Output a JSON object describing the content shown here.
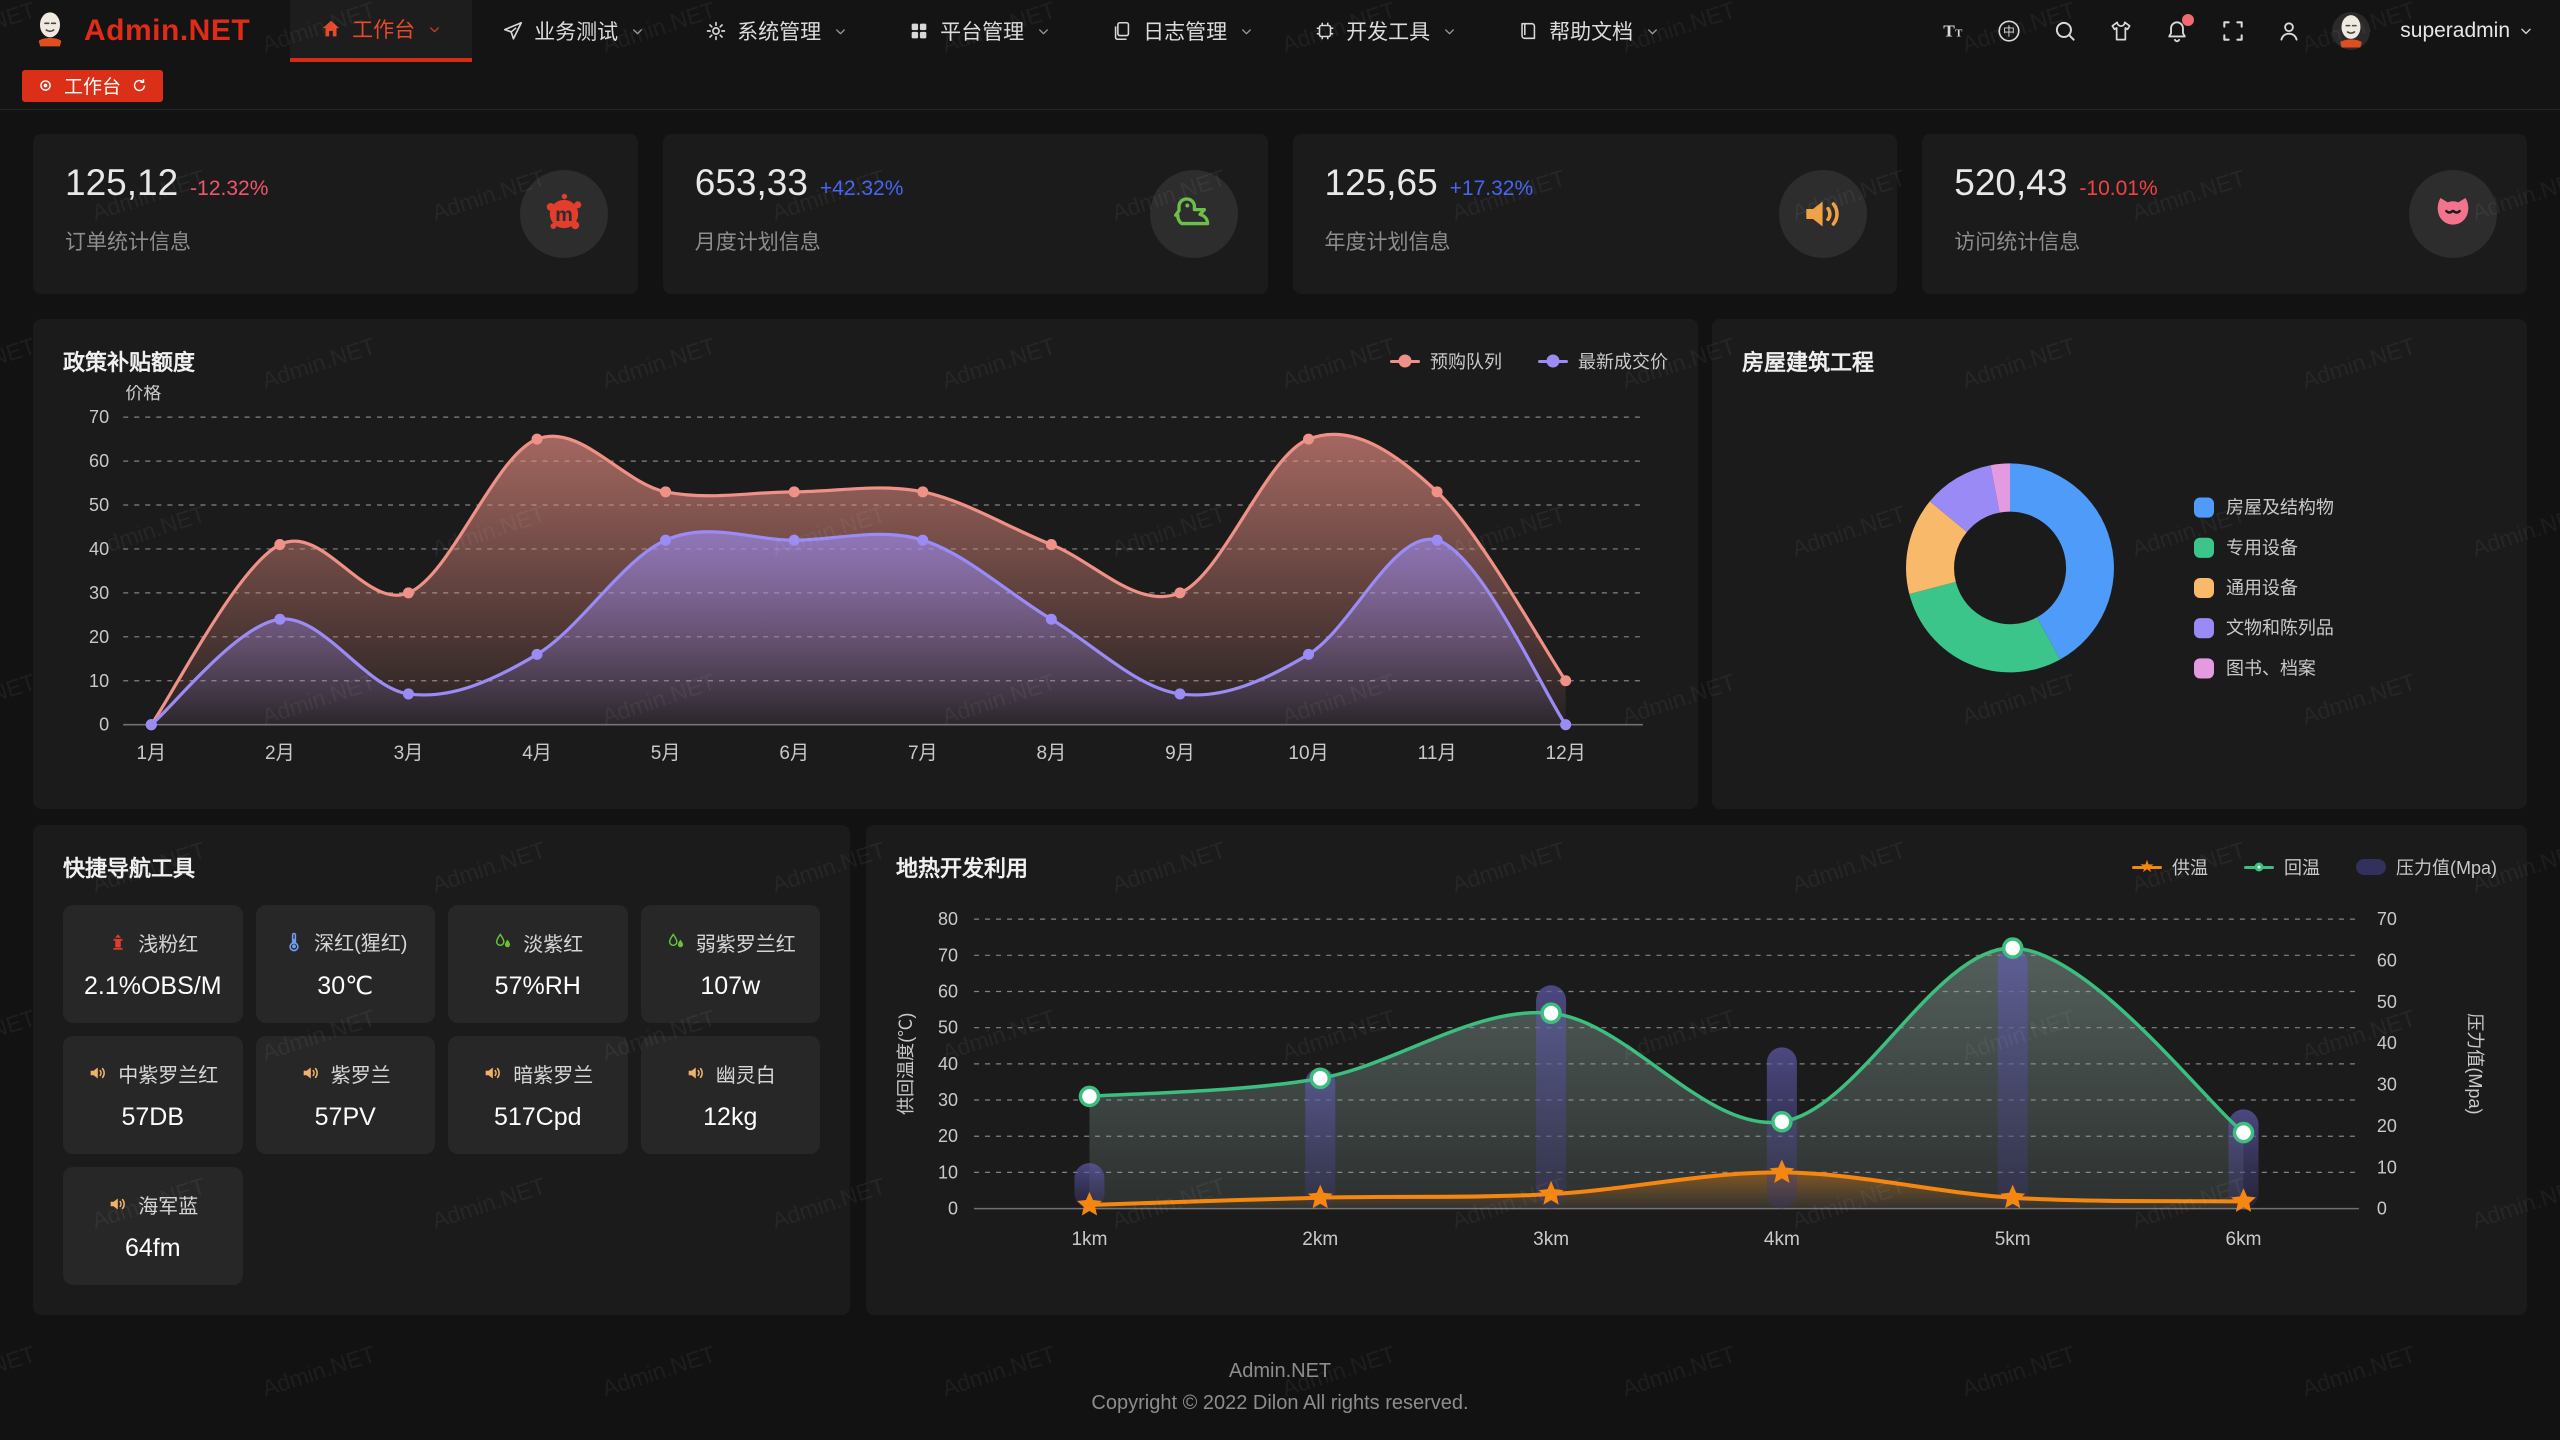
{
  "watermark": "Admin.NET",
  "header": {
    "logo_text": "Admin.NET",
    "menu": [
      {
        "label": "工作台",
        "icon": "home",
        "active": true
      },
      {
        "label": "业务测试",
        "icon": "send",
        "active": false
      },
      {
        "label": "系统管理",
        "icon": "gear",
        "active": false
      },
      {
        "label": "平台管理",
        "icon": "grid",
        "active": false
      },
      {
        "label": "日志管理",
        "icon": "document",
        "active": false
      },
      {
        "label": "开发工具",
        "icon": "cpu",
        "active": false
      },
      {
        "label": "帮助文档",
        "icon": "book",
        "active": false
      }
    ],
    "action_icons": [
      "font-size",
      "language",
      "search",
      "theme",
      "notification",
      "fullscreen",
      "profile"
    ],
    "notification_badge": true,
    "username": "superadmin"
  },
  "tabbar": {
    "tabs": [
      {
        "label": "工作台",
        "active": true
      }
    ]
  },
  "stat_cards": [
    {
      "value": "125,12",
      "delta": "-12.32%",
      "delta_color": "#f1556c",
      "label": "订单统计信息",
      "icon": "meetup-splat",
      "icon_color": "#e23d2d"
    },
    {
      "value": "653,33",
      "delta": "+42.32%",
      "delta_color": "#4466f2",
      "label": "月度计划信息",
      "icon": "duck",
      "icon_color": "#6cbf4a"
    },
    {
      "value": "125,65",
      "delta": "+17.32%",
      "delta_color": "#4466f2",
      "label": "年度计划信息",
      "icon": "speaker",
      "icon_color": "#efa144"
    },
    {
      "value": "520,43",
      "delta": "-10.01%",
      "delta_color": "#ef4444",
      "label": "访问统计信息",
      "icon": "cat",
      "icon_color": "#f2738c"
    }
  ],
  "chart_data": [
    {
      "type": "area",
      "title": "政策补贴额度",
      "ylabel": "价格",
      "ylim": [
        0,
        70
      ],
      "ytick_interval": 10,
      "grid": "dashed",
      "legend_position": "top-right",
      "categories": [
        "1月",
        "2月",
        "3月",
        "4月",
        "5月",
        "6月",
        "7月",
        "8月",
        "9月",
        "10月",
        "11月",
        "12月"
      ],
      "series": [
        {
          "name": "预购队列",
          "color": "#ef9186",
          "values": [
            0,
            41,
            30,
            65,
            53,
            53,
            53,
            41,
            30,
            65,
            53,
            10
          ]
        },
        {
          "name": "最新成交价",
          "color": "#9b8bf4",
          "values": [
            0,
            24,
            7,
            16,
            42,
            42,
            42,
            24,
            7,
            16,
            42,
            0
          ]
        }
      ]
    },
    {
      "type": "pie",
      "title": "房屋建筑工程",
      "donut": true,
      "legend_position": "right",
      "labels": [
        "房屋及结构物",
        "专用设备",
        "通用设备",
        "文物和陈列品",
        "图书、档案"
      ],
      "values": [
        42,
        29,
        15,
        11,
        3
      ],
      "colors": [
        "#4e9bfa",
        "#3bc58a",
        "#f8b96a",
        "#9a8af5",
        "#e49ae0"
      ]
    },
    {
      "type": "line+bar",
      "title": "地热开发利用",
      "legend_position": "top-right",
      "categories": [
        "1km",
        "2km",
        "3km",
        "4km",
        "5km",
        "6km"
      ],
      "left_axis": {
        "label": "供回温度(℃)",
        "range": [
          0,
          80
        ],
        "interval": 10
      },
      "right_axis": {
        "label": "压力值(Mpa)",
        "range": [
          0,
          70
        ],
        "interval": 10
      },
      "series": [
        {
          "name": "供温",
          "chart": "line",
          "marker": "star",
          "axis": "left",
          "color": "#f5860f",
          "values": [
            1,
            3,
            4,
            10,
            3,
            2
          ]
        },
        {
          "name": "回温",
          "chart": "line",
          "marker": "circle",
          "axis": "left",
          "color": "#3cbe7e",
          "values": [
            31,
            36,
            54,
            24,
            72,
            21
          ]
        },
        {
          "name": "压力值(Mpa)",
          "chart": "bar",
          "axis": "right",
          "color": "#4b4784",
          "values": [
            11,
            34,
            54,
            39,
            63,
            24
          ]
        }
      ]
    }
  ],
  "quick_nav": {
    "title": "快捷导航工具",
    "items": [
      {
        "icon": "hydrant",
        "icon_color": "#e23c2d",
        "name": "浅粉红",
        "value": "2.1%OBS/M"
      },
      {
        "icon": "thermometer",
        "icon_color": "#6f9ef1",
        "name": "深红(猩红)",
        "value": "30℃"
      },
      {
        "icon": "humidity",
        "icon_color": "#67c23a",
        "name": "淡紫红",
        "value": "57%RH"
      },
      {
        "icon": "humidity",
        "icon_color": "#67c23a",
        "name": "弱紫罗兰红",
        "value": "107w"
      },
      {
        "icon": "speaker",
        "icon_color": "#eeb269",
        "name": "中紫罗兰红",
        "value": "57DB"
      },
      {
        "icon": "speaker",
        "icon_color": "#eeb269",
        "name": "紫罗兰",
        "value": "57PV"
      },
      {
        "icon": "speaker",
        "icon_color": "#eeb269",
        "name": "暗紫罗兰",
        "value": "517Cpd"
      },
      {
        "icon": "speaker",
        "icon_color": "#eeb269",
        "name": "幽灵白",
        "value": "12kg"
      },
      {
        "icon": "speaker",
        "icon_color": "#eeb269",
        "name": "海军蓝",
        "value": "64fm"
      }
    ]
  },
  "footer": {
    "line1": "Admin.NET",
    "line2": "Copyright © 2022 Dilon All rights reserved."
  }
}
